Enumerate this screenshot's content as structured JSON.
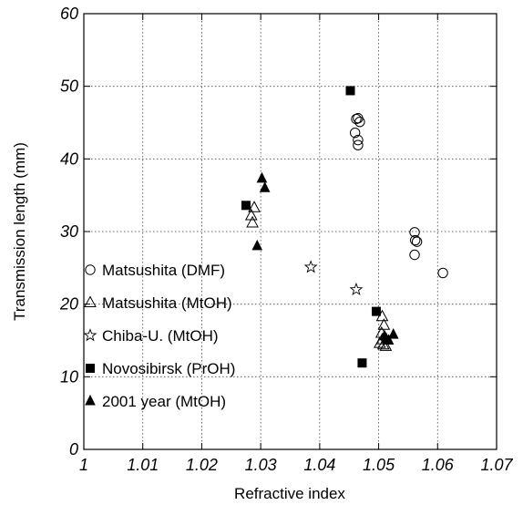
{
  "chart_data": {
    "type": "scatter",
    "title": "",
    "xlabel": "Refractive index",
    "ylabel": "Transmission length (mm)",
    "xlim": [
      1,
      1.07
    ],
    "ylim": [
      0,
      60
    ],
    "xticks": [
      "1",
      "1.01",
      "1.02",
      "1.03",
      "1.04",
      "1.05",
      "1.06",
      "1.07"
    ],
    "yticks": [
      "0",
      "10",
      "20",
      "30",
      "40",
      "50",
      "60"
    ],
    "grid": true,
    "legend_position": "left-middle",
    "series": [
      {
        "name": "Matsushita (DMF)",
        "marker": "circle-open",
        "points": [
          [
            1.0462,
            45.5
          ],
          [
            1.0465,
            45.6
          ],
          [
            1.0468,
            45.1
          ],
          [
            1.046,
            43.6
          ],
          [
            1.0465,
            42.6
          ],
          [
            1.0465,
            41.9
          ],
          [
            1.0561,
            29.9
          ],
          [
            1.0562,
            28.8
          ],
          [
            1.0565,
            28.6
          ],
          [
            1.0561,
            26.8
          ],
          [
            1.0609,
            24.3
          ]
        ]
      },
      {
        "name": "Matsushita (MtOH)",
        "marker": "triangle-open",
        "points": [
          [
            1.0289,
            33.3
          ],
          [
            1.0284,
            32.2
          ],
          [
            1.0286,
            31.2
          ],
          [
            1.0506,
            18.3
          ],
          [
            1.0509,
            17.1
          ],
          [
            1.0505,
            16.0
          ],
          [
            1.0506,
            15.1
          ],
          [
            1.0508,
            14.4
          ],
          [
            1.0512,
            14.2
          ],
          [
            1.0502,
            14.6
          ]
        ]
      },
      {
        "name": "Chiba-U. (MtOH)",
        "marker": "star-open",
        "points": [
          [
            1.0385,
            25.1
          ],
          [
            1.0462,
            22.0
          ]
        ]
      },
      {
        "name": "Novosibirsk (PrOH)",
        "marker": "square-filled",
        "points": [
          [
            1.0452,
            49.4
          ],
          [
            1.0275,
            33.6
          ],
          [
            1.0496,
            19.0
          ],
          [
            1.0472,
            11.9
          ]
        ]
      },
      {
        "name": "2001 year (MtOH)",
        "marker": "triangle-filled",
        "points": [
          [
            1.0302,
            37.3
          ],
          [
            1.0307,
            36.0
          ],
          [
            1.0294,
            28.0
          ],
          [
            1.051,
            15.6
          ],
          [
            1.0525,
            15.8
          ],
          [
            1.0513,
            15.2
          ],
          [
            1.0517,
            15.0
          ]
        ]
      }
    ]
  }
}
